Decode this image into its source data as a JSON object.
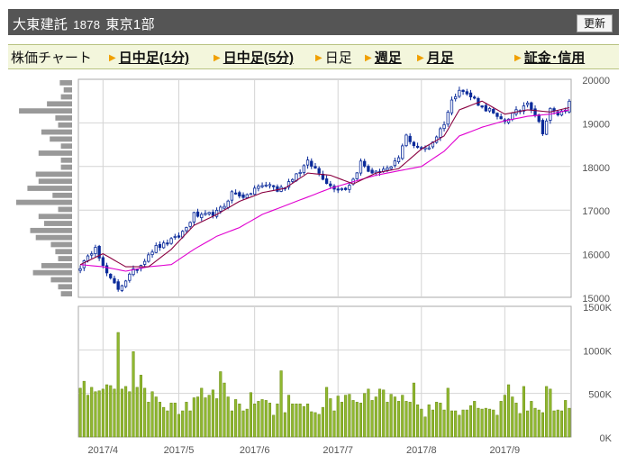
{
  "header": {
    "title": "大東建託",
    "code": "1878",
    "market": "東京1部",
    "refresh_label": "更新"
  },
  "tabs": [
    {
      "label": "株価チャート",
      "link": false,
      "arrow": false
    },
    {
      "label": "日中足(1分)",
      "link": true,
      "arrow": true
    },
    {
      "label": "日中足(5分)",
      "link": true,
      "arrow": true
    },
    {
      "label": "日足",
      "link": false,
      "arrow": true
    },
    {
      "label": "週足",
      "link": true,
      "arrow": true
    },
    {
      "label": "月足",
      "link": true,
      "arrow": true
    },
    {
      "label": "証金･信用",
      "link": true,
      "arrow": true
    }
  ],
  "colors": {
    "candle_up": "#ffffff",
    "candle_down": "#0a2a9a",
    "candle_outline": "#0a2a9a",
    "ma_short": "#8a0040",
    "ma_long": "#e000d0",
    "volume_bar": "#8fb830",
    "volume_bar_dark": "#6a8a10",
    "volume_profile": "#999999",
    "grid": "#d4d4d4",
    "axis_text": "#555555"
  },
  "chart_data": [
    {
      "type": "candlestick",
      "title": "",
      "y_ticks": [
        "20000",
        "19000",
        "18000",
        "17000",
        "16000",
        "15000"
      ],
      "ylim": [
        15000,
        20000
      ],
      "x_ticks": [
        "2017/4",
        "2017/5",
        "2017/6",
        "2017/7",
        "2017/8",
        "2017/9"
      ],
      "candle_days": 130,
      "x_tick_day": [
        6,
        26,
        46,
        68,
        90,
        112
      ],
      "close_anchors": [
        [
          0,
          15700
        ],
        [
          2,
          15900
        ],
        [
          4,
          16200
        ],
        [
          6,
          15700
        ],
        [
          8,
          15400
        ],
        [
          10,
          15200
        ],
        [
          12,
          15400
        ],
        [
          14,
          15600
        ],
        [
          16,
          15750
        ],
        [
          18,
          16000
        ],
        [
          20,
          16150
        ],
        [
          22,
          16200
        ],
        [
          24,
          16300
        ],
        [
          26,
          16400
        ],
        [
          28,
          16600
        ],
        [
          30,
          16900
        ],
        [
          32,
          16850
        ],
        [
          34,
          16900
        ],
        [
          36,
          16950
        ],
        [
          38,
          17100
        ],
        [
          40,
          17400
        ],
        [
          42,
          17350
        ],
        [
          44,
          17300
        ],
        [
          46,
          17500
        ],
        [
          48,
          17550
        ],
        [
          50,
          17600
        ],
        [
          52,
          17450
        ],
        [
          54,
          17550
        ],
        [
          56,
          17750
        ],
        [
          58,
          17900
        ],
        [
          60,
          18100
        ],
        [
          62,
          17950
        ],
        [
          64,
          17750
        ],
        [
          66,
          17550
        ],
        [
          68,
          17500
        ],
        [
          70,
          17500
        ],
        [
          72,
          17700
        ],
        [
          74,
          18100
        ],
        [
          76,
          17900
        ],
        [
          78,
          17850
        ],
        [
          80,
          17950
        ],
        [
          82,
          17950
        ],
        [
          84,
          18200
        ],
        [
          86,
          18700
        ],
        [
          88,
          18500
        ],
        [
          90,
          18400
        ],
        [
          92,
          18450
        ],
        [
          94,
          18700
        ],
        [
          96,
          19000
        ],
        [
          98,
          19500
        ],
        [
          100,
          19800
        ],
        [
          102,
          19650
        ],
        [
          104,
          19550
        ],
        [
          106,
          19350
        ],
        [
          108,
          19300
        ],
        [
          110,
          19100
        ],
        [
          112,
          19050
        ],
        [
          114,
          19200
        ],
        [
          116,
          19300
        ],
        [
          118,
          19500
        ],
        [
          120,
          19200
        ],
        [
          122,
          18800
        ],
        [
          124,
          19300
        ],
        [
          126,
          19200
        ],
        [
          128,
          19300
        ],
        [
          129,
          19550
        ]
      ],
      "ma_short": [
        [
          0,
          15750
        ],
        [
          6,
          16000
        ],
        [
          12,
          15700
        ],
        [
          18,
          15700
        ],
        [
          24,
          16100
        ],
        [
          30,
          16650
        ],
        [
          36,
          16900
        ],
        [
          42,
          17200
        ],
        [
          48,
          17400
        ],
        [
          54,
          17500
        ],
        [
          60,
          17850
        ],
        [
          66,
          17800
        ],
        [
          72,
          17600
        ],
        [
          78,
          17850
        ],
        [
          84,
          17950
        ],
        [
          90,
          18400
        ],
        [
          96,
          18700
        ],
        [
          100,
          19300
        ],
        [
          106,
          19500
        ],
        [
          112,
          19200
        ],
        [
          118,
          19300
        ],
        [
          124,
          19250
        ],
        [
          129,
          19350
        ]
      ],
      "ma_long": [
        [
          0,
          15750
        ],
        [
          6,
          15700
        ],
        [
          12,
          15600
        ],
        [
          18,
          15700
        ],
        [
          24,
          15750
        ],
        [
          30,
          16100
        ],
        [
          36,
          16400
        ],
        [
          42,
          16600
        ],
        [
          48,
          16900
        ],
        [
          54,
          17100
        ],
        [
          60,
          17300
        ],
        [
          66,
          17500
        ],
        [
          72,
          17650
        ],
        [
          78,
          17800
        ],
        [
          84,
          17900
        ],
        [
          90,
          18000
        ],
        [
          96,
          18350
        ],
        [
          100,
          18700
        ],
        [
          106,
          18900
        ],
        [
          112,
          19050
        ],
        [
          118,
          19150
        ],
        [
          124,
          19200
        ],
        [
          129,
          19300
        ]
      ],
      "volume_profile": [
        0.22,
        0.15,
        0.2,
        0.45,
        0.95,
        0.3,
        0.25,
        0.55,
        0.4,
        0.2,
        0.6,
        0.2,
        0.2,
        0.65,
        0.6,
        0.8,
        0.35,
        1.0,
        0.25,
        0.6,
        0.5,
        0.75,
        0.65,
        0.38,
        0.3,
        0.25,
        0.55,
        0.7,
        0.38,
        0.25,
        0.2
      ]
    },
    {
      "type": "bar",
      "title": "",
      "y_ticks": [
        "1500K",
        "1000K",
        "500K",
        "0K"
      ],
      "ylim": [
        0,
        1500000
      ],
      "volumes": [
        560000,
        640000,
        480000,
        570000,
        520000,
        530000,
        550000,
        600000,
        590000,
        550000,
        1200000,
        550000,
        580000,
        520000,
        980000,
        570000,
        710000,
        560000,
        400000,
        520000,
        460000,
        400000,
        340000,
        300000,
        390000,
        390000,
        260000,
        300000,
        400000,
        300000,
        450000,
        460000,
        560000,
        450000,
        480000,
        540000,
        440000,
        750000,
        620000,
        460000,
        300000,
        430000,
        380000,
        300000,
        320000,
        510000,
        380000,
        410000,
        430000,
        420000,
        390000,
        250000,
        380000,
        760000,
        280000,
        480000,
        380000,
        380000,
        380000,
        350000,
        380000,
        290000,
        280000,
        260000,
        340000,
        570000,
        440000,
        300000,
        470000,
        400000,
        480000,
        490000,
        420000,
        400000,
        390000,
        500000,
        550000,
        420000,
        460000,
        550000,
        540000,
        400000,
        490000,
        460000,
        410000,
        480000,
        410000,
        400000,
        620000,
        370000,
        320000,
        230000,
        370000,
        310000,
        400000,
        390000,
        310000,
        560000,
        300000,
        300000,
        250000,
        310000,
        310000,
        360000,
        410000,
        330000,
        320000,
        330000,
        320000,
        310000,
        250000,
        410000,
        480000,
        600000,
        460000,
        390000,
        270000,
        580000,
        300000,
        410000,
        330000,
        310000,
        280000,
        580000,
        550000,
        300000,
        310000,
        300000,
        420000,
        330000
      ]
    }
  ]
}
